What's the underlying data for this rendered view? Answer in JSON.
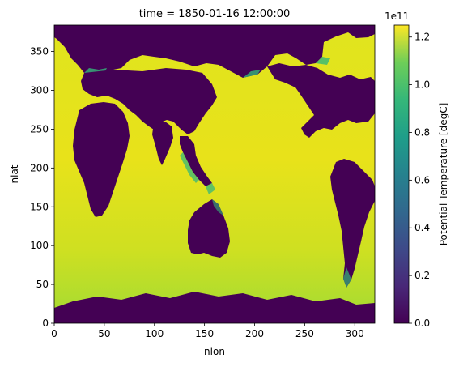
{
  "chart_data": {
    "type": "heatmap",
    "title": "time = 1850-01-16 12:00:00",
    "xlabel": "nlon",
    "ylabel": "nlat",
    "xlim": [
      0,
      320
    ],
    "ylim": [
      0,
      384
    ],
    "x_ticks": [
      0,
      50,
      100,
      150,
      200,
      250,
      300
    ],
    "y_ticks": [
      0,
      50,
      100,
      150,
      200,
      250,
      300,
      350
    ],
    "colorbar": {
      "label": "Potential Temperature [degC]",
      "offset_text": "1e11",
      "range": [
        0.0,
        1.25
      ],
      "ticks": [
        0.0,
        0.2,
        0.4,
        0.6,
        0.8,
        1.0,
        1.2
      ],
      "tick_labels": [
        "0.0",
        "0.2",
        "0.4",
        "0.6",
        "0.8",
        "1.0",
        "1.2"
      ],
      "colormap": "viridis"
    },
    "colors": {
      "land": "#440154",
      "ocean_max": "#e6e31a",
      "ocean_mid": "#b6de2b",
      "coastal": "#35b779"
    }
  }
}
